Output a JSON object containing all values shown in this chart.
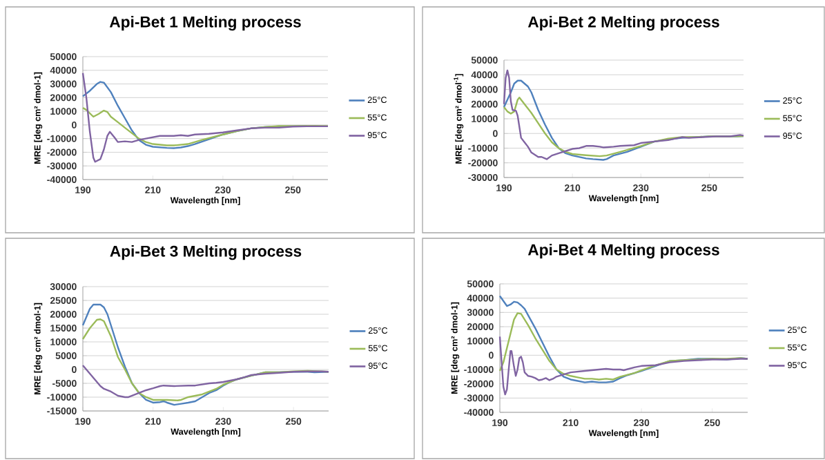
{
  "chart_data": [
    {
      "type": "line",
      "title": "Api-Bet 1 Melting process",
      "xlabel": "Wavelength [nm]",
      "ylabel": "MRE [deg cm² dmol-1]",
      "xlim": [
        190,
        260
      ],
      "xticks": [
        190,
        210,
        230,
        250
      ],
      "ylim": [
        -40000,
        50000
      ],
      "yticks": [
        -40000,
        -30000,
        -20000,
        -10000,
        0,
        10000,
        20000,
        30000,
        40000,
        50000
      ],
      "grid": "y",
      "legend": "right",
      "series": [
        {
          "name": "25°C",
          "color": "#4f81bd",
          "x": [
            190,
            192,
            194,
            195,
            196,
            198,
            200,
            202,
            204,
            206,
            208,
            210,
            214,
            216,
            218,
            220,
            222,
            226,
            230,
            234,
            238,
            242,
            246,
            250,
            254
          ],
          "values": [
            21000,
            25000,
            30000,
            31500,
            31000,
            24000,
            14000,
            5000,
            -4000,
            -11000,
            -14500,
            -16000,
            -16800,
            -17000,
            -16500,
            -15500,
            -14000,
            -10500,
            -7000,
            -4500,
            -2500,
            -1500,
            -1000,
            -1000,
            -800
          ]
        },
        {
          "name": "55°C",
          "color": "#9bbb59",
          "x": [
            190,
            191,
            193,
            194.5,
            196,
            197,
            198,
            200,
            202,
            204,
            206,
            208,
            210,
            214,
            216,
            220,
            224,
            230,
            234,
            238,
            242,
            246,
            250,
            256,
            260
          ],
          "values": [
            12500,
            11000,
            6000,
            8000,
            10500,
            9500,
            6000,
            2000,
            -2000,
            -6000,
            -10000,
            -12500,
            -14000,
            -15000,
            -15000,
            -14000,
            -11000,
            -7000,
            -4500,
            -2500,
            -1500,
            -800,
            -800,
            -700,
            -800
          ]
        },
        {
          "name": "95°C",
          "color": "#8064a2",
          "x": [
            190,
            191,
            192,
            193,
            193.5,
            195,
            196,
            197,
            197.7,
            199,
            200,
            202,
            204,
            206,
            208,
            210,
            212,
            214,
            216,
            218,
            220,
            222,
            226,
            230,
            234,
            238,
            242,
            246,
            250,
            254,
            258,
            260
          ],
          "values": [
            38000,
            20000,
            -5000,
            -24000,
            -27000,
            -25000,
            -18000,
            -8000,
            -5000,
            -9000,
            -12500,
            -12000,
            -12500,
            -11000,
            -10000,
            -9000,
            -8000,
            -8000,
            -8000,
            -7500,
            -8000,
            -7000,
            -6500,
            -5500,
            -4000,
            -2500,
            -2000,
            -2000,
            -1200,
            -1000,
            -1000,
            -1000
          ]
        }
      ]
    },
    {
      "type": "line",
      "title": "Api-Bet 2 Melting process",
      "xlabel": "Wavelength [nm]",
      "ylabel": "MRE [deg cm² dmol$^{-1}$]",
      "xlim": [
        190,
        260
      ],
      "xticks": [
        190,
        210,
        230,
        250
      ],
      "ylim": [
        -30000,
        50000
      ],
      "yticks": [
        -30000,
        -20000,
        -10000,
        0,
        10000,
        20000,
        30000,
        40000,
        50000
      ],
      "grid": "y",
      "legend": "right",
      "series": [
        {
          "name": "25°C",
          "color": "#4f81bd",
          "x": [
            190,
            192,
            193,
            194,
            195,
            197,
            198,
            200,
            202,
            204,
            206,
            208,
            210,
            214,
            216,
            219,
            220,
            222,
            226,
            230,
            234,
            238,
            242,
            246,
            250,
            254,
            258,
            260
          ],
          "values": [
            18000,
            28000,
            34000,
            36000,
            36000,
            32000,
            28000,
            16000,
            6000,
            -3000,
            -10000,
            -13500,
            -15000,
            -17000,
            -17500,
            -18000,
            -17500,
            -15000,
            -12500,
            -9000,
            -5500,
            -4000,
            -3000,
            -2500,
            -2000,
            -2000,
            -2000,
            -1800
          ]
        },
        {
          "name": "55°C",
          "color": "#9bbb59",
          "x": [
            190,
            191,
            192,
            193,
            194,
            194.5,
            196,
            198,
            200,
            202,
            204,
            206,
            208,
            210,
            214,
            218,
            220,
            224,
            230,
            234,
            238,
            242,
            246,
            250,
            256,
            260
          ],
          "values": [
            18000,
            15000,
            13500,
            15000,
            23000,
            24500,
            20000,
            14000,
            7000,
            0,
            -6000,
            -10000,
            -12500,
            -14000,
            -14800,
            -15500,
            -15000,
            -12500,
            -8500,
            -5500,
            -3500,
            -2500,
            -2500,
            -2000,
            -2000,
            -1800
          ]
        },
        {
          "name": "95°C",
          "color": "#8064a2",
          "x": [
            190,
            190.5,
            191,
            191.5,
            192,
            192.5,
            193.5,
            194,
            195,
            196,
            197,
            198,
            200,
            201,
            202,
            202.5,
            204,
            206,
            208,
            210,
            212,
            214,
            216,
            218,
            219,
            222,
            224,
            228,
            230,
            234,
            238,
            242,
            244,
            248,
            252,
            256,
            259,
            260
          ],
          "values": [
            20000,
            38000,
            43000,
            38000,
            22000,
            16000,
            15500,
            12000,
            -3000,
            -6000,
            -9000,
            -13000,
            -16000,
            -16000,
            -17000,
            -17500,
            -15000,
            -13500,
            -12000,
            -10500,
            -10000,
            -8500,
            -8500,
            -9000,
            -9500,
            -9000,
            -8500,
            -8000,
            -6500,
            -5500,
            -4500,
            -2500,
            -3000,
            -2500,
            -2000,
            -2000,
            -1000,
            -1500
          ]
        }
      ]
    },
    {
      "type": "line",
      "title": "Api-Bet 3 Melting process",
      "xlabel": "Wavelength [nm]",
      "ylabel": "MRE [deg cm² dmol-1]",
      "xlim": [
        190,
        260
      ],
      "xticks": [
        190,
        210,
        230,
        250
      ],
      "ylim": [
        -15000,
        30000
      ],
      "yticks": [
        -15000,
        -10000,
        -5000,
        0,
        5000,
        10000,
        15000,
        20000,
        25000,
        30000
      ],
      "grid": "y",
      "legend": "right",
      "series": [
        {
          "name": "25°C",
          "color": "#4f81bd",
          "x": [
            190,
            191,
            192,
            193,
            195,
            196,
            197,
            198,
            200,
            202,
            204,
            206,
            208,
            210,
            212,
            213,
            214,
            216,
            218,
            220,
            222,
            224,
            226,
            228,
            230,
            232,
            234,
            238,
            242,
            246,
            250,
            254,
            256,
            260
          ],
          "values": [
            16000,
            19000,
            22000,
            23500,
            23500,
            22500,
            20000,
            16000,
            8000,
            1000,
            -5000,
            -8500,
            -11000,
            -12000,
            -11800,
            -11500,
            -12000,
            -12800,
            -12400,
            -12000,
            -11500,
            -10000,
            -8500,
            -7500,
            -5800,
            -4500,
            -3500,
            -2200,
            -1000,
            -1000,
            -800,
            -800,
            -1000,
            -800
          ]
        },
        {
          "name": "55°C",
          "color": "#9bbb59",
          "x": [
            190,
            192,
            194,
            195,
            196,
            198,
            200,
            202,
            204,
            206,
            208,
            210,
            214,
            217,
            218,
            220,
            224,
            228,
            230,
            234,
            238,
            242,
            246,
            250,
            254,
            258,
            260
          ],
          "values": [
            11000,
            15000,
            18000,
            18200,
            17500,
            12000,
            4500,
            0,
            -5000,
            -8500,
            -10000,
            -11000,
            -11000,
            -11200,
            -11000,
            -10000,
            -9000,
            -7000,
            -5500,
            -3500,
            -2200,
            -1000,
            -1000,
            -700,
            -500,
            -700,
            -800
          ]
        },
        {
          "name": "95°C",
          "color": "#8064a2",
          "x": [
            190,
            192,
            194,
            195,
            196,
            198,
            200,
            202,
            203,
            204,
            206,
            208,
            210,
            212,
            213,
            216,
            220,
            222,
            226,
            228,
            230,
            234,
            236,
            238,
            242,
            246,
            250,
            254,
            258,
            260
          ],
          "values": [
            1500,
            -1500,
            -4500,
            -6000,
            -7000,
            -8000,
            -9500,
            -10000,
            -10000,
            -9500,
            -8500,
            -7500,
            -6800,
            -6000,
            -5800,
            -6000,
            -5800,
            -5800,
            -5000,
            -4800,
            -4500,
            -3500,
            -2800,
            -2000,
            -1500,
            -1200,
            -800,
            -700,
            -700,
            -800
          ]
        }
      ]
    },
    {
      "type": "line",
      "title": "Api-Bet 4 Melting process",
      "xlabel": "Wavelength [nm]",
      "ylabel": "MRE [deg cm² dmol-1]",
      "xlim": [
        190,
        260
      ],
      "xticks": [
        190,
        210,
        230,
        250
      ],
      "ylim": [
        -40000,
        50000
      ],
      "yticks": [
        -40000,
        -30000,
        -20000,
        -10000,
        0,
        10000,
        20000,
        30000,
        40000,
        50000
      ],
      "grid": "y",
      "legend": "right",
      "series": [
        {
          "name": "25°C",
          "color": "#4f81bd",
          "x": [
            190,
            191,
            192,
            193,
            194,
            195,
            196,
            197,
            198,
            200,
            202,
            204,
            206,
            208,
            210,
            212,
            214,
            216,
            218,
            220,
            222,
            224,
            226,
            230,
            234,
            238,
            242,
            246,
            250,
            254,
            258,
            260
          ],
          "values": [
            41500,
            38000,
            34500,
            35500,
            37500,
            37000,
            35000,
            32500,
            28000,
            19000,
            9000,
            -1000,
            -10000,
            -15000,
            -17000,
            -18000,
            -19000,
            -18500,
            -19000,
            -19000,
            -18500,
            -16000,
            -14000,
            -11000,
            -7500,
            -4000,
            -3500,
            -2500,
            -2500,
            -3000,
            -2000,
            -2500
          ]
        },
        {
          "name": "55°C",
          "color": "#9bbb59",
          "x": [
            190,
            191,
            192,
            193,
            194,
            195,
            196,
            198,
            200,
            202,
            204,
            206,
            208,
            210,
            212,
            214,
            216,
            218,
            220,
            222,
            224,
            228,
            230,
            234,
            238,
            242,
            246,
            250,
            254,
            258,
            260
          ],
          "values": [
            -11000,
            -5000,
            5000,
            15000,
            25000,
            29500,
            29000,
            21000,
            12000,
            4000,
            -4000,
            -10000,
            -13000,
            -14500,
            -15500,
            -16500,
            -16500,
            -17000,
            -16500,
            -17000,
            -15000,
            -12500,
            -10500,
            -7000,
            -4000,
            -3500,
            -3000,
            -2500,
            -2500,
            -2000,
            -2500
          ]
        },
        {
          "name": "95°C",
          "color": "#8064a2",
          "x": [
            190,
            190.5,
            191,
            191.5,
            192,
            192.5,
            193,
            193.3,
            194,
            194.5,
            195,
            195.5,
            196,
            196.5,
            197,
            198,
            199,
            200,
            201,
            202,
            203,
            204,
            205,
            206,
            208,
            210,
            214,
            218,
            220,
            222,
            224,
            225,
            228,
            230,
            234,
            238,
            242,
            246,
            250,
            254,
            258,
            260
          ],
          "values": [
            13000,
            -5000,
            -22000,
            -27500,
            -24000,
            -10000,
            3000,
            3000,
            -8000,
            -14500,
            -10000,
            -2000,
            -1000,
            -5000,
            -12000,
            -14500,
            -15000,
            -16000,
            -17500,
            -17000,
            -16000,
            -17500,
            -16500,
            -15000,
            -13500,
            -12000,
            -11000,
            -10000,
            -9500,
            -10000,
            -10000,
            -10500,
            -8500,
            -7500,
            -7000,
            -5000,
            -4000,
            -3500,
            -3000,
            -3000,
            -2500,
            -2500
          ]
        }
      ]
    }
  ]
}
